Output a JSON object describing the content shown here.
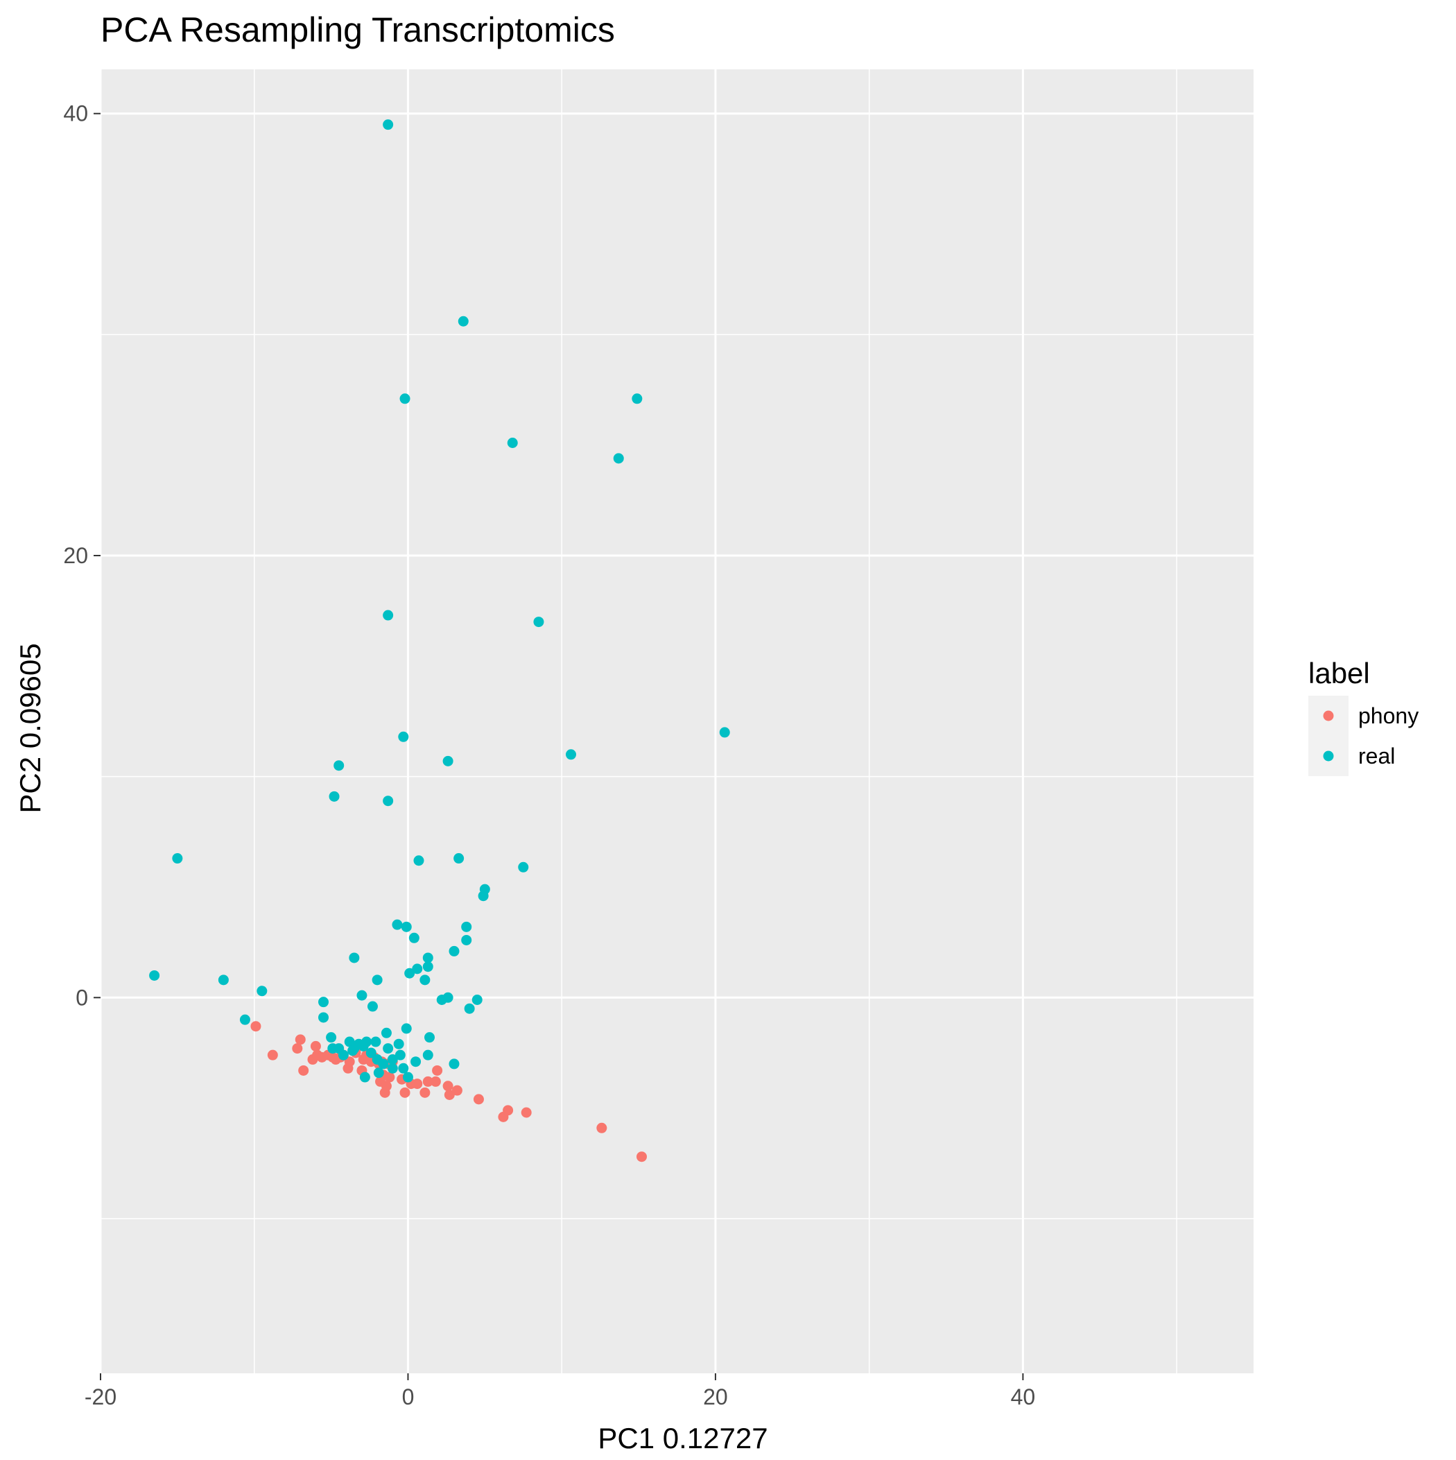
{
  "chart_data": {
    "type": "scatter",
    "title": "PCA Resampling Transcriptomics",
    "xlabel": "PC1 0.12727",
    "ylabel": "PC2 0.09605",
    "xlim": [
      -20,
      55
    ],
    "ylim": [
      -17,
      42
    ],
    "x_major_ticks": [
      -20,
      0,
      20,
      40
    ],
    "x_minor_ticks": [
      -10,
      10,
      30,
      50
    ],
    "y_major_ticks": [
      0,
      20,
      40
    ],
    "y_minor_ticks": [
      -10,
      10,
      30
    ],
    "x_tick_labels": [
      "-20",
      "0",
      "20",
      "40"
    ],
    "y_tick_labels": [
      "0",
      "20",
      "40"
    ],
    "grid": true,
    "panel_background": "#ebebeb",
    "legend": {
      "title": "label",
      "position": "right",
      "entries": [
        {
          "label": "phony",
          "color": "#F8766D"
        },
        {
          "label": "real",
          "color": "#00BFC4"
        }
      ]
    },
    "series": [
      {
        "name": "phony",
        "color": "#F8766D",
        "points": [
          [
            -9.9,
            -1.3
          ],
          [
            -8.8,
            -2.6
          ],
          [
            -7.2,
            -2.3
          ],
          [
            -7.0,
            -1.9
          ],
          [
            -6.8,
            -3.3
          ],
          [
            -6.2,
            -2.8
          ],
          [
            -6.0,
            -2.2
          ],
          [
            -5.9,
            -2.6
          ],
          [
            -5.6,
            -2.7
          ],
          [
            -5.2,
            -2.6
          ],
          [
            -4.9,
            -2.7
          ],
          [
            -4.7,
            -2.8
          ],
          [
            -4.4,
            -2.7
          ],
          [
            -4.2,
            -2.6
          ],
          [
            -3.8,
            -2.9
          ],
          [
            -3.9,
            -3.2
          ],
          [
            -3.4,
            -2.5
          ],
          [
            -2.9,
            -2.8
          ],
          [
            -2.7,
            -2.6
          ],
          [
            -3.0,
            -3.3
          ],
          [
            -2.4,
            -2.9
          ],
          [
            -2.2,
            -2.7
          ],
          [
            -1.9,
            -3.0
          ],
          [
            -1.7,
            -2.9
          ],
          [
            -1.6,
            -3.5
          ],
          [
            -1.5,
            -4.3
          ],
          [
            -1.3,
            -3.0
          ],
          [
            -1.2,
            -3.6
          ],
          [
            -1.0,
            -2.9
          ],
          [
            -1.8,
            -3.8
          ],
          [
            -1.4,
            -4.0
          ],
          [
            -0.4,
            -3.7
          ],
          [
            -0.2,
            -4.3
          ],
          [
            0.2,
            -3.9
          ],
          [
            0.6,
            -3.9
          ],
          [
            1.1,
            -4.3
          ],
          [
            1.3,
            -3.8
          ],
          [
            1.8,
            -3.8
          ],
          [
            1.9,
            -3.3
          ],
          [
            2.6,
            -4.0
          ],
          [
            2.7,
            -4.4
          ],
          [
            3.2,
            -4.2
          ],
          [
            4.6,
            -4.6
          ],
          [
            6.2,
            -5.4
          ],
          [
            6.5,
            -5.1
          ],
          [
            7.7,
            -5.2
          ],
          [
            12.6,
            -5.9
          ],
          [
            15.2,
            -7.2
          ]
        ]
      },
      {
        "name": "real",
        "color": "#00BFC4",
        "points": [
          [
            -1.3,
            39.5
          ],
          [
            3.6,
            30.6
          ],
          [
            -0.2,
            27.1
          ],
          [
            14.9,
            27.1
          ],
          [
            6.8,
            25.1
          ],
          [
            13.7,
            24.4
          ],
          [
            -1.3,
            17.3
          ],
          [
            8.5,
            17.0
          ],
          [
            20.6,
            12.0
          ],
          [
            -0.3,
            11.8
          ],
          [
            10.6,
            11.0
          ],
          [
            2.6,
            10.7
          ],
          [
            -4.5,
            10.5
          ],
          [
            -4.8,
            9.1
          ],
          [
            -1.3,
            8.9
          ],
          [
            -15.0,
            6.3
          ],
          [
            0.7,
            6.2
          ],
          [
            3.3,
            6.3
          ],
          [
            7.5,
            5.9
          ],
          [
            5.0,
            4.9
          ],
          [
            4.9,
            4.6
          ],
          [
            -0.7,
            3.3
          ],
          [
            -0.1,
            3.2
          ],
          [
            3.8,
            3.2
          ],
          [
            0.4,
            2.7
          ],
          [
            3.8,
            2.6
          ],
          [
            3.0,
            2.1
          ],
          [
            -3.5,
            1.8
          ],
          [
            1.3,
            1.8
          ],
          [
            1.3,
            1.4
          ],
          [
            0.6,
            1.3
          ],
          [
            0.1,
            1.1
          ],
          [
            1.1,
            0.8
          ],
          [
            -2.0,
            0.8
          ],
          [
            -16.5,
            1.0
          ],
          [
            -12.0,
            0.8
          ],
          [
            -9.5,
            0.3
          ],
          [
            -3.0,
            0.1
          ],
          [
            2.2,
            -0.1
          ],
          [
            2.6,
            0.0
          ],
          [
            4.5,
            -0.1
          ],
          [
            4.0,
            -0.5
          ],
          [
            -5.5,
            -0.2
          ],
          [
            -2.3,
            -0.4
          ],
          [
            -10.6,
            -1.0
          ],
          [
            -5.5,
            -0.9
          ],
          [
            -0.1,
            -1.4
          ],
          [
            -1.4,
            -1.6
          ],
          [
            1.4,
            -1.8
          ],
          [
            -5.0,
            -1.8
          ],
          [
            -4.9,
            -2.3
          ],
          [
            -4.5,
            -2.3
          ],
          [
            -3.8,
            -2.0
          ],
          [
            -3.5,
            -2.3
          ],
          [
            -3.2,
            -2.1
          ],
          [
            -2.9,
            -2.2
          ],
          [
            -2.7,
            -2.0
          ],
          [
            -2.4,
            -2.5
          ],
          [
            -2.1,
            -2.0
          ],
          [
            -1.3,
            -2.3
          ],
          [
            -0.6,
            -2.1
          ],
          [
            -1.0,
            -2.8
          ],
          [
            -0.5,
            -2.6
          ],
          [
            -0.3,
            -3.2
          ],
          [
            0.0,
            -3.6
          ],
          [
            0.5,
            -2.9
          ],
          [
            1.3,
            -2.6
          ],
          [
            3.0,
            -3.0
          ],
          [
            -2.8,
            -3.6
          ],
          [
            -1.9,
            -3.4
          ],
          [
            -1.0,
            -3.2
          ],
          [
            -2.0,
            -2.8
          ],
          [
            -1.6,
            -3.0
          ],
          [
            -3.6,
            -2.4
          ],
          [
            -4.2,
            -2.6
          ]
        ]
      }
    ]
  }
}
